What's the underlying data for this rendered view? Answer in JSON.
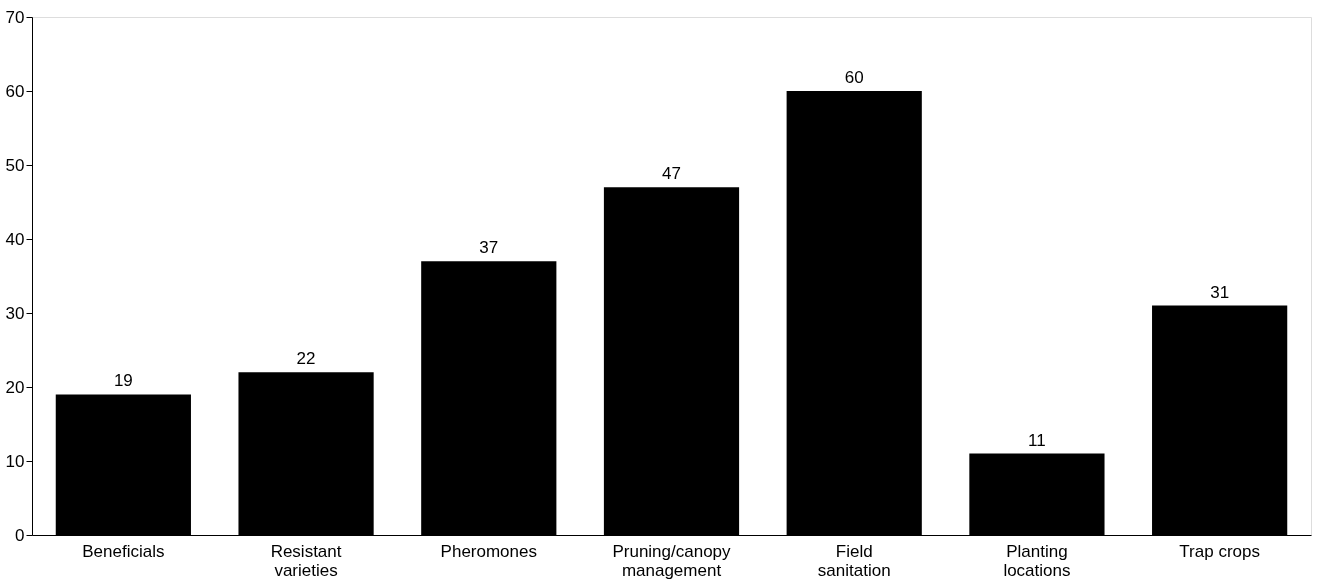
{
  "chart_data": {
    "type": "bar",
    "categories": [
      "Beneficials",
      "Resistant\nvarieties",
      "Pheromones",
      "Pruning/canopy\nmanagement",
      "Field\nsanitation",
      "Planting\nlocations",
      "Trap crops"
    ],
    "values": [
      19,
      22,
      37,
      47,
      60,
      11,
      31
    ],
    "color": "#000000",
    "ylim": [
      0,
      70
    ],
    "yticks": [
      0,
      10,
      20,
      30,
      40,
      50,
      60,
      70
    ],
    "grid": false,
    "data_labels": true
  }
}
